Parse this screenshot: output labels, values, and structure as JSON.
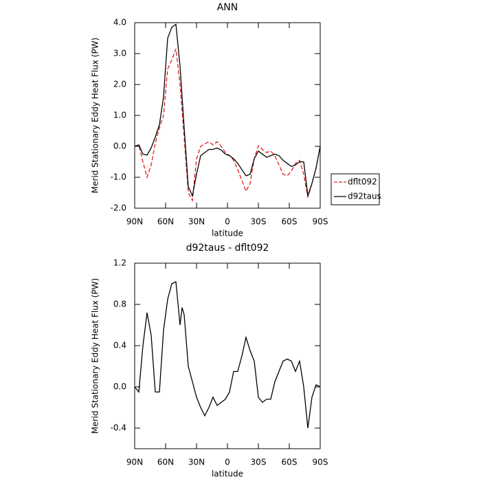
{
  "chart_data": [
    {
      "type": "line",
      "title": "ANN",
      "xlabel": "latitude",
      "ylabel": "Merid Stationary Eddy Heat Flux (PW)",
      "x": [
        90,
        86,
        82,
        78,
        74,
        70,
        66,
        62,
        58,
        54,
        50,
        46,
        42,
        38,
        34,
        30,
        26,
        22,
        18,
        14,
        10,
        6,
        2,
        -2,
        -6,
        -10,
        -14,
        -18,
        -22,
        -26,
        -30,
        -34,
        -38,
        -42,
        -46,
        -50,
        -54,
        -58,
        -62,
        -66,
        -70,
        -74,
        -78,
        -82,
        -86,
        -90
      ],
      "series": [
        {
          "name": "dflt092",
          "color": "#e41a1c",
          "dashed": true,
          "values": [
            0,
            0.05,
            -0.5,
            -1.0,
            -0.6,
            0.1,
            0.6,
            1.0,
            2.5,
            2.8,
            3.15,
            2.0,
            0.3,
            -1.5,
            -1.75,
            -0.4,
            0.0,
            0.08,
            0.15,
            0.05,
            0.15,
            0.0,
            -0.2,
            -0.3,
            -0.45,
            -0.75,
            -1.1,
            -1.45,
            -1.2,
            -0.4,
            0.02,
            -0.1,
            -0.2,
            -0.15,
            -0.3,
            -0.6,
            -0.9,
            -0.95,
            -0.8,
            -0.55,
            -0.45,
            -0.9,
            -1.65,
            -1.2,
            -0.7,
            0
          ]
        },
        {
          "name": "d92taus",
          "color": "#000000",
          "dashed": false,
          "values": [
            0,
            0.05,
            -0.25,
            -0.28,
            -0.05,
            0.3,
            0.7,
            1.6,
            3.5,
            3.85,
            3.95,
            2.6,
            0.6,
            -1.3,
            -1.6,
            -0.9,
            -0.3,
            -0.2,
            -0.1,
            -0.1,
            -0.05,
            -0.12,
            -0.25,
            -0.3,
            -0.4,
            -0.55,
            -0.75,
            -0.95,
            -0.9,
            -0.4,
            -0.15,
            -0.25,
            -0.35,
            -0.3,
            -0.25,
            -0.3,
            -0.45,
            -0.55,
            -0.65,
            -0.6,
            -0.5,
            -0.5,
            -1.6,
            -1.2,
            -0.7,
            0
          ]
        }
      ],
      "xlim": [
        90,
        -90
      ],
      "xticks": [
        {
          "value": 90,
          "label": "90N"
        },
        {
          "value": 60,
          "label": "60N"
        },
        {
          "value": 30,
          "label": "30N"
        },
        0,
        {
          "value": -30,
          "label": "30S"
        },
        {
          "value": -60,
          "label": "60S"
        },
        {
          "value": -90,
          "label": "90S"
        }
      ],
      "ylim": [
        -2,
        4
      ],
      "yticks": [
        {
          "value": -2,
          "label": "-2.0"
        },
        {
          "value": -1,
          "label": "-1.0"
        },
        {
          "value": 0,
          "label": "0.0"
        },
        {
          "value": 1,
          "label": "1.0"
        },
        {
          "value": 2,
          "label": "2.0"
        },
        {
          "value": 3,
          "label": "3.0"
        },
        {
          "value": 4,
          "label": "4.0"
        }
      ],
      "legend": "right"
    },
    {
      "type": "line",
      "title": "d92taus - dflt092",
      "xlabel": "latitude",
      "ylabel": "Merid Stationary Eddy Heat Flux (PW)",
      "x": [
        90,
        86,
        82,
        78,
        74,
        70,
        66,
        62,
        58,
        54,
        50,
        46,
        44,
        42,
        38,
        34,
        30,
        26,
        22,
        18,
        14,
        10,
        6,
        2,
        -2,
        -6,
        -10,
        -14,
        -18,
        -22,
        -26,
        -30,
        -34,
        -38,
        -42,
        -46,
        -50,
        -54,
        -58,
        -62,
        -66,
        -70,
        -74,
        -78,
        -82,
        -86,
        -90
      ],
      "series": [
        {
          "name": "d92taus - dflt092",
          "color": "#000000",
          "dashed": false,
          "values": [
            0,
            -0.05,
            0.4,
            0.72,
            0.5,
            -0.05,
            -0.05,
            0.55,
            0.85,
            1.0,
            1.02,
            0.6,
            0.77,
            0.7,
            0.2,
            0.05,
            -0.1,
            -0.2,
            -0.28,
            -0.2,
            -0.1,
            -0.18,
            -0.15,
            -0.12,
            -0.05,
            0.15,
            0.15,
            0.3,
            0.48,
            0.35,
            0.25,
            -0.1,
            -0.15,
            -0.12,
            -0.12,
            0.05,
            0.15,
            0.25,
            0.27,
            0.25,
            0.15,
            0.25,
            0.0,
            -0.4,
            -0.1,
            0.02,
            0
          ]
        }
      ],
      "xlim": [
        90,
        -90
      ],
      "xticks": [
        {
          "value": 90,
          "label": "90N"
        },
        {
          "value": 60,
          "label": "60N"
        },
        {
          "value": 30,
          "label": "30N"
        },
        0,
        {
          "value": -30,
          "label": "30S"
        },
        {
          "value": -60,
          "label": "60S"
        },
        {
          "value": -90,
          "label": "90S"
        }
      ],
      "ylim": [
        -0.6,
        1.2
      ],
      "yticks": [
        -0.4,
        {
          "value": 0,
          "label": "0.0"
        },
        0.4,
        0.8,
        1.2
      ]
    }
  ]
}
